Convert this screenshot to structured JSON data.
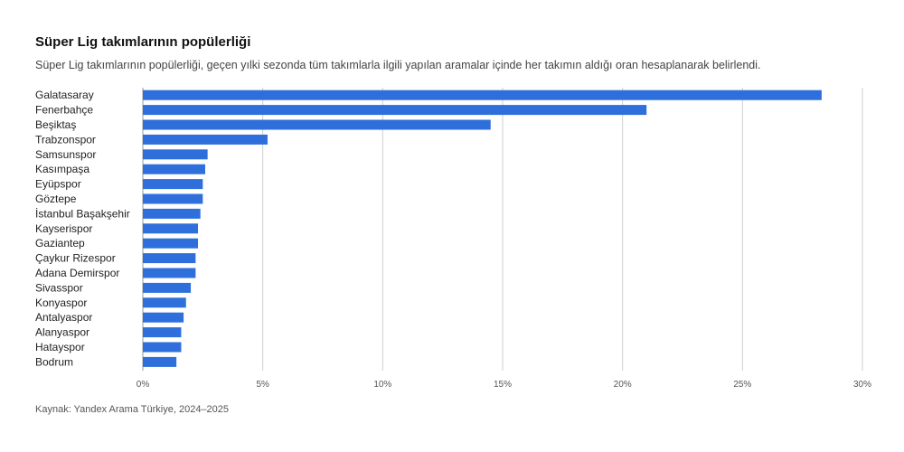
{
  "chart_data": {
    "type": "bar",
    "orientation": "horizontal",
    "title": "Süper Lig takımlarının popülerliği",
    "subtitle": "Süper Lig takımlarının popülerliği, geçen yılki sezonda tüm takımlarla ilgili yapılan aramalar içinde her takımın aldığı oran hesaplanarak belirlendi.",
    "source": "Kaynak: Yandex Arama Türkiye, 2024–2025",
    "categories": [
      "Galatasaray",
      "Fenerbahçe",
      "Beşiktaş",
      "Trabzonspor",
      "Samsunspor",
      "Kasımpaşa",
      "Eyüpspor",
      "Göztepe",
      "İstanbul Başakşehir",
      "Kayserispor",
      "Gaziantep",
      "Çaykur Rizespor",
      "Adana Demirspor",
      "Sivasspor",
      "Konyaspor",
      "Antalyaspor",
      "Alanyaspor",
      "Hatayspor",
      "Bodrum"
    ],
    "values": [
      28.3,
      21.0,
      14.5,
      5.2,
      2.7,
      2.6,
      2.5,
      2.5,
      2.4,
      2.3,
      2.3,
      2.2,
      2.2,
      2.0,
      1.8,
      1.7,
      1.6,
      1.6,
      1.4
    ],
    "xlim": [
      0,
      30
    ],
    "ticks": [
      0,
      5,
      10,
      15,
      20,
      25,
      30
    ],
    "tick_labels": [
      "0%",
      "5%",
      "10%",
      "15%",
      "20%",
      "25%",
      "30%"
    ],
    "bar_color": "#2e6fdb",
    "grid": true
  }
}
